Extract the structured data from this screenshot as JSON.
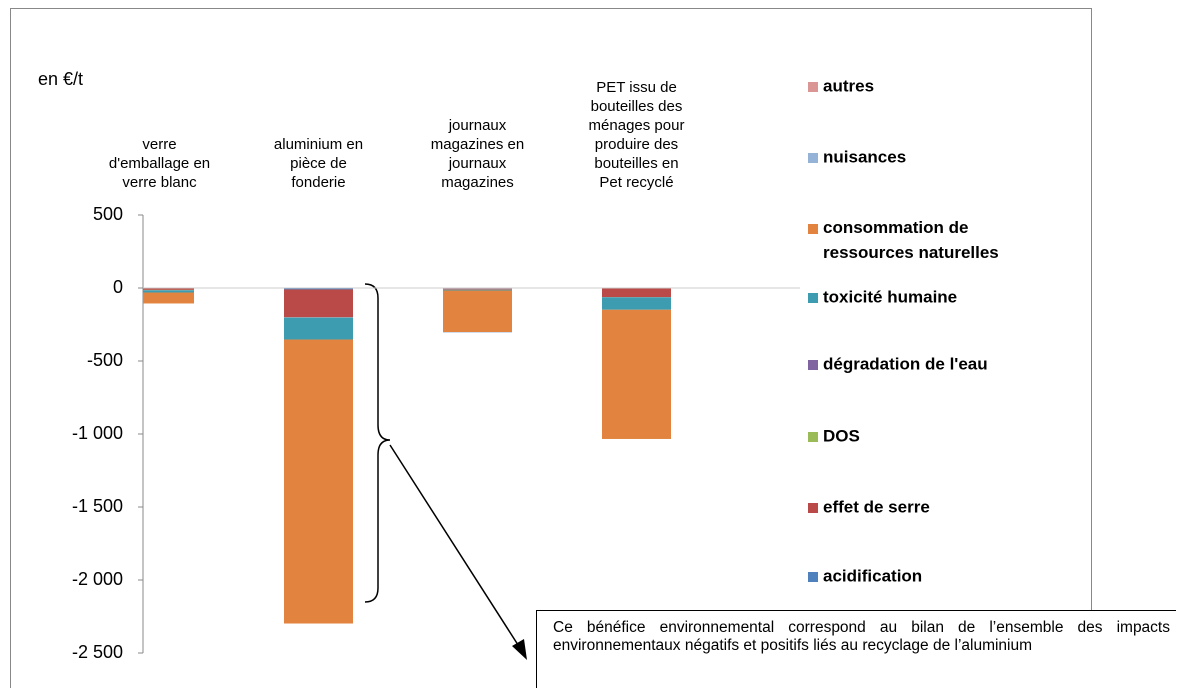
{
  "chart_data": {
    "type": "stacked-bar",
    "ylabel": "en €/t",
    "categories": [
      "verre\nd'emballage en\nverre blanc",
      "aluminium  en\npièce de\nfonderie",
      "journaux\nmagazines en\njournaux\nmagazines",
      "PET issu de\nbouteilles des\nménages pour\nproduire des\nbouteilles en\nPet recyclé"
    ],
    "series": [
      {
        "name": "autres",
        "color": "#d99694",
        "values": [
          0,
          0,
          0,
          0
        ]
      },
      {
        "name": "nuisances",
        "color": "#95b3d7",
        "values": [
          0,
          0,
          -3,
          0
        ]
      },
      {
        "name": "consommation de\nressources naturelles",
        "color": "#e2843f",
        "values": [
          -75,
          -1945,
          -285,
          -885
        ]
      },
      {
        "name": "toxicité humaine",
        "color": "#3d9cb0",
        "values": [
          -15,
          -150,
          -5,
          -85
        ]
      },
      {
        "name": "dégradation de l'eau",
        "color": "#8064a2",
        "values": [
          -1,
          -2,
          -1,
          -1
        ]
      },
      {
        "name": "DOS",
        "color": "#9bbb59",
        "values": [
          -2,
          -1,
          -1,
          -1
        ]
      },
      {
        "name": "effet de serre",
        "color": "#b94a48",
        "values": [
          -10,
          -190,
          -5,
          -60
        ]
      },
      {
        "name": "acidification",
        "color": "#4f81bd",
        "values": [
          -3,
          -10,
          -5,
          -2
        ]
      }
    ],
    "ylim": [
      -2500,
      500
    ],
    "yticks": [
      500,
      0,
      -500,
      {
        "value": -1000,
        "label": "-1 000"
      },
      {
        "value": -1500,
        "label": "-1 500"
      },
      {
        "value": -2000,
        "label": "-2 000"
      },
      {
        "value": -2500,
        "label": "-2 500"
      }
    ],
    "annotation": "Ce bénéfice environnemental correspond au bilan de l’ensemble des impacts environnementaux négatifs et positifs liés au recyclage de l’aluminium"
  }
}
